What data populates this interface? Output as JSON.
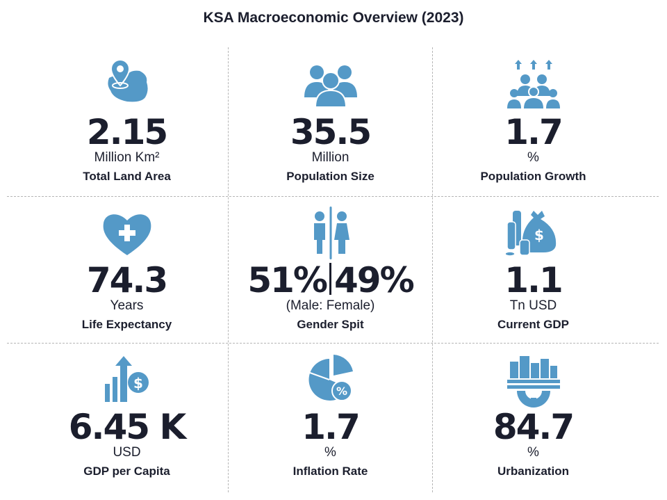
{
  "title": "KSA Macroeconomic Overview (2023)",
  "colors": {
    "icon": "#5499c7",
    "text": "#1b1e2d"
  },
  "cards": [
    {
      "icon": "map-pin-icon",
      "value": "2.15",
      "unit": "Million Km²",
      "label": "Total Land Area"
    },
    {
      "icon": "people-icon",
      "value": "35.5",
      "unit": "Million",
      "label": "Population Size"
    },
    {
      "icon": "population-growth-icon",
      "value": "1.7",
      "unit": "%",
      "label": "Population Growth"
    },
    {
      "icon": "heart-plus-icon",
      "value": "74.3",
      "unit": "Years",
      "label": "Life Expectancy"
    },
    {
      "icon": "male-female-icon",
      "value_male": "51%",
      "value_female": "49%",
      "unit": "(Male: Female)",
      "label": "Gender Spit"
    },
    {
      "icon": "money-bag-icon",
      "value": "1.1",
      "unit": "Tn USD",
      "label": "Current GDP"
    },
    {
      "icon": "growth-dollar-icon",
      "value": "6.45 K",
      "unit": "USD",
      "label": "GDP per Capita"
    },
    {
      "icon": "pie-percent-icon",
      "value": "1.7",
      "unit": "%",
      "label": "Inflation Rate"
    },
    {
      "icon": "city-gear-icon",
      "value": "84.7",
      "unit": "%",
      "label": "Urbanization"
    }
  ]
}
